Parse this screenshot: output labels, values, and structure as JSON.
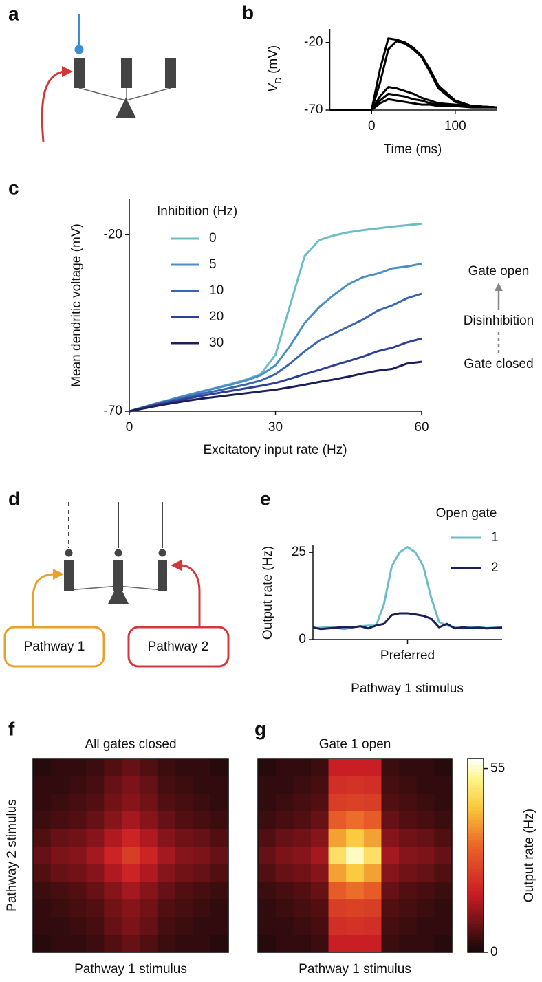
{
  "chart_data": [
    {
      "type": "line",
      "panel": "b",
      "xlabel": "Time (ms)",
      "ylabel": [
        "V",
        "D",
        " (mV)"
      ],
      "x": [
        -50,
        0,
        10,
        20,
        30,
        40,
        50,
        60,
        70,
        80,
        100,
        120,
        150
      ],
      "xlim": [
        -50,
        150
      ],
      "xticks": [
        0,
        100
      ],
      "ylim": [
        -70,
        -10
      ],
      "yticks": [
        -70,
        -20
      ],
      "series": [
        {
          "color": "#000000",
          "values": [
            -70,
            -70,
            -40,
            -17,
            -18,
            -20,
            -24,
            -30,
            -40,
            -52,
            -63,
            -67,
            -68
          ]
        },
        {
          "color": "#000000",
          "values": [
            -70,
            -70,
            -50,
            -25,
            -19,
            -21,
            -25,
            -31,
            -42,
            -54,
            -64,
            -67,
            -68
          ]
        },
        {
          "color": "#000000",
          "values": [
            -70,
            -70,
            -60,
            -53,
            -54,
            -56,
            -58,
            -61,
            -63,
            -65,
            -66,
            -67,
            -68
          ]
        },
        {
          "color": "#000000",
          "values": [
            -70,
            -70,
            -63,
            -58,
            -59,
            -60,
            -62,
            -63,
            -65,
            -66,
            -67,
            -67,
            -68
          ]
        },
        {
          "color": "#000000",
          "values": [
            -70,
            -70,
            -65,
            -62,
            -63,
            -64,
            -65,
            -66,
            -66,
            -67,
            -67,
            -68,
            -68
          ]
        }
      ]
    },
    {
      "type": "line",
      "panel": "c",
      "xlabel": "Excitatory input rate (Hz)",
      "ylabel": "Mean dendritic voltage (mV)",
      "legend_title": "Inhibition (Hz)",
      "annotations": [
        "Gate open",
        "Disinhibition",
        "Gate closed"
      ],
      "x": [
        0,
        3,
        6,
        9,
        12,
        15,
        18,
        21,
        24,
        27,
        30,
        33,
        36,
        39,
        42,
        45,
        48,
        51,
        54,
        57,
        60
      ],
      "xlim": [
        0,
        60
      ],
      "xticks": [
        0,
        30,
        60
      ],
      "ylim": [
        -70,
        -10
      ],
      "yticks": [
        -70,
        -20
      ],
      "series": [
        {
          "name": "0",
          "color": "#6dbdc6",
          "values": [
            -70,
            -68.8,
            -67.6,
            -66.5,
            -65.4,
            -64.3,
            -63.3,
            -62.2,
            -61,
            -59.5,
            -54,
            -40,
            -26,
            -21.5,
            -20.2,
            -19.3,
            -18.7,
            -18.2,
            -17.7,
            -17.3,
            -16.9
          ]
        },
        {
          "name": "5",
          "color": "#4a8fc4",
          "values": [
            -70,
            -68.8,
            -67.6,
            -66.5,
            -65.4,
            -64.4,
            -63.4,
            -62.4,
            -61.3,
            -59.8,
            -57,
            -51.5,
            -45,
            -40.5,
            -37,
            -34,
            -32,
            -31,
            -29.5,
            -29,
            -28.2
          ]
        },
        {
          "name": "10",
          "color": "#3a65b0",
          "values": [
            -70,
            -68.9,
            -67.8,
            -66.8,
            -65.9,
            -65,
            -64.2,
            -63.3,
            -62.4,
            -61.3,
            -59.5,
            -56.5,
            -53,
            -50,
            -48,
            -46,
            -44,
            -41.5,
            -40,
            -38,
            -36.7
          ]
        },
        {
          "name": "20",
          "color": "#2e3f96",
          "values": [
            -70,
            -69,
            -68.1,
            -67.2,
            -66.4,
            -65.6,
            -64.9,
            -64.2,
            -63.5,
            -62.8,
            -62,
            -60.8,
            -59.5,
            -58.3,
            -57,
            -55.8,
            -54.5,
            -53,
            -52,
            -50.5,
            -49.4
          ]
        },
        {
          "name": "30",
          "color": "#1a1f5a",
          "values": [
            -70,
            -69.2,
            -68.4,
            -67.7,
            -67,
            -66.4,
            -65.9,
            -65.4,
            -64.9,
            -64.4,
            -63.9,
            -63.2,
            -62.5,
            -61.7,
            -61,
            -60.2,
            -59.3,
            -58.5,
            -58,
            -56.5,
            -56
          ]
        }
      ]
    },
    {
      "type": "line",
      "panel": "e",
      "xlabel": "Pathway 1 stimulus",
      "ylabel": "Output rate (Hz)",
      "legend_title": "Open gate",
      "x": [
        -12,
        -11,
        -10,
        -9,
        -8,
        -7,
        -6,
        -5,
        -4,
        -3,
        -2,
        -1,
        0,
        1,
        2,
        3,
        4,
        5,
        6,
        7,
        8,
        9,
        10,
        11,
        12
      ],
      "xlim": [
        -12,
        12
      ],
      "xticks": [
        {
          "value": 0,
          "label": "Preferred"
        }
      ],
      "ylim": [
        0,
        27
      ],
      "yticks": [
        0,
        25
      ],
      "series": [
        {
          "name": "1",
          "color": "#6dbdc6",
          "values": [
            3.2,
            3.4,
            3.6,
            3.3,
            3,
            3.5,
            3.8,
            4,
            4,
            10,
            21,
            25,
            26.5,
            25,
            21,
            12,
            5,
            4,
            3.5,
            3.2,
            3.5,
            3.6,
            3.3,
            3.4,
            3.5
          ]
        },
        {
          "name": "2",
          "color": "#1a1f5a",
          "values": [
            3.5,
            3,
            3.2,
            3.4,
            3.6,
            3.5,
            3.8,
            3.2,
            4,
            4.5,
            7,
            7.5,
            7.5,
            7.2,
            6.8,
            6,
            3.5,
            4.5,
            3.2,
            3.5,
            3.3,
            3.4,
            3.2,
            3.3,
            3.4
          ]
        }
      ]
    },
    {
      "type": "heatmap",
      "panel": "f",
      "title": "All gates closed",
      "xlabel": "Pathway 1 stimulus",
      "ylabel": "Pathway 2 stimulus",
      "zlim": [
        0,
        58
      ],
      "z": [
        [
          2,
          3,
          3,
          4,
          6,
          8,
          6,
          4,
          3,
          3,
          2
        ],
        [
          3,
          3,
          4,
          5,
          8,
          10,
          8,
          5,
          4,
          3,
          3
        ],
        [
          3,
          4,
          5,
          6,
          9,
          11,
          9,
          6,
          5,
          4,
          3
        ],
        [
          4,
          5,
          6,
          8,
          11,
          14,
          11,
          8,
          6,
          5,
          4
        ],
        [
          6,
          8,
          9,
          11,
          15,
          19,
          15,
          11,
          9,
          8,
          6
        ],
        [
          8,
          10,
          11,
          14,
          19,
          24,
          19,
          14,
          11,
          10,
          8
        ],
        [
          6,
          8,
          9,
          11,
          15,
          19,
          15,
          11,
          9,
          8,
          6
        ],
        [
          4,
          5,
          6,
          8,
          11,
          14,
          11,
          8,
          6,
          5,
          4
        ],
        [
          3,
          4,
          5,
          6,
          9,
          11,
          9,
          6,
          5,
          4,
          3
        ],
        [
          3,
          3,
          4,
          5,
          8,
          10,
          8,
          5,
          4,
          3,
          3
        ],
        [
          2,
          3,
          3,
          4,
          6,
          8,
          6,
          4,
          3,
          3,
          2
        ]
      ]
    },
    {
      "type": "heatmap",
      "panel": "g",
      "title": "Gate 1 open",
      "xlabel": "Pathway 1 stimulus",
      "colorbar_label": "Output rate (Hz)",
      "zlim": [
        0,
        58
      ],
      "zticks": [
        0,
        55
      ],
      "z": [
        [
          2,
          3,
          3,
          4,
          18,
          18,
          18,
          4,
          3,
          3,
          2
        ],
        [
          3,
          3,
          4,
          5,
          21,
          22,
          21,
          5,
          4,
          3,
          3
        ],
        [
          3,
          4,
          5,
          6,
          24,
          25,
          24,
          6,
          5,
          4,
          3
        ],
        [
          4,
          5,
          6,
          8,
          30,
          33,
          30,
          8,
          6,
          5,
          4
        ],
        [
          6,
          8,
          9,
          11,
          39,
          44,
          39,
          11,
          9,
          8,
          6
        ],
        [
          8,
          10,
          11,
          14,
          48,
          55,
          48,
          14,
          11,
          10,
          8
        ],
        [
          6,
          8,
          9,
          11,
          39,
          44,
          39,
          11,
          9,
          8,
          6
        ],
        [
          4,
          5,
          6,
          8,
          30,
          33,
          30,
          8,
          6,
          5,
          4
        ],
        [
          3,
          4,
          5,
          6,
          24,
          25,
          24,
          6,
          5,
          4,
          3
        ],
        [
          3,
          3,
          4,
          5,
          21,
          22,
          21,
          5,
          4,
          3,
          3
        ],
        [
          2,
          3,
          3,
          4,
          18,
          18,
          18,
          4,
          3,
          3,
          2
        ]
      ]
    }
  ],
  "diagrams": [
    {
      "panel": "a"
    },
    {
      "panel": "d",
      "labels": [
        "Pathway 1",
        "Pathway 2"
      ]
    }
  ]
}
